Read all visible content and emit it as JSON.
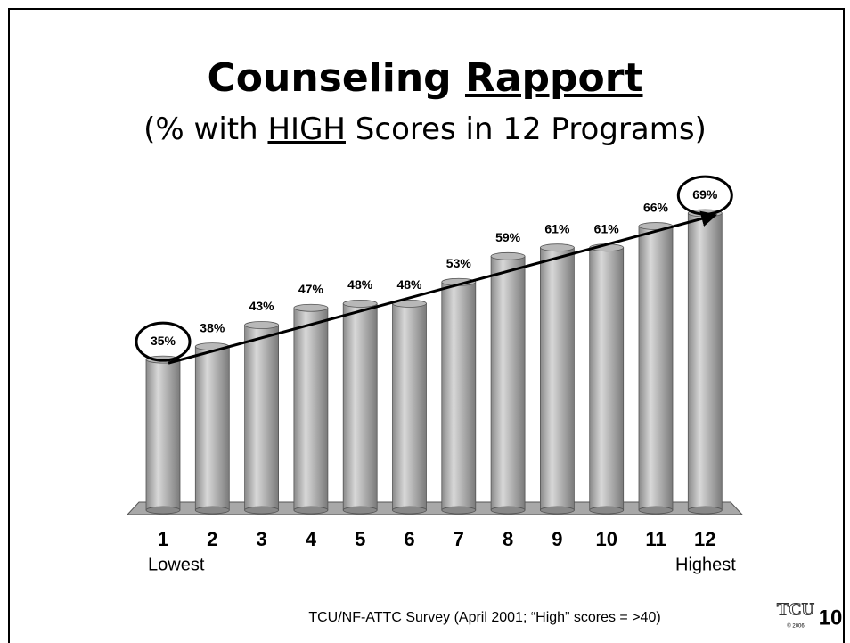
{
  "chart_data": {
    "type": "bar",
    "title": [
      "Counseling",
      "Rapport"
    ],
    "subtitle": [
      "(% with",
      "HIGH",
      "Scores in 12 Programs)"
    ],
    "categories": [
      "1",
      "2",
      "3",
      "4",
      "5",
      "6",
      "7",
      "8",
      "9",
      "10",
      "11",
      "12"
    ],
    "values": [
      35,
      38,
      43,
      47,
      48,
      48,
      53,
      59,
      61,
      61,
      66,
      69
    ],
    "value_labels": [
      "35%",
      "38%",
      "43%",
      "47%",
      "48%",
      "48%",
      "53%",
      "59%",
      "61%",
      "61%",
      "66%",
      "69%"
    ],
    "color": "#a0a0a0",
    "ylim": [
      0,
      80
    ],
    "annotations": [
      "Lowest",
      "Highest"
    ],
    "footer": "TCU/NF-ATTC Survey (April 2001; “High” scores = >40)",
    "logo": "TCU",
    "copyright": "© 2006",
    "page_number": "10"
  }
}
